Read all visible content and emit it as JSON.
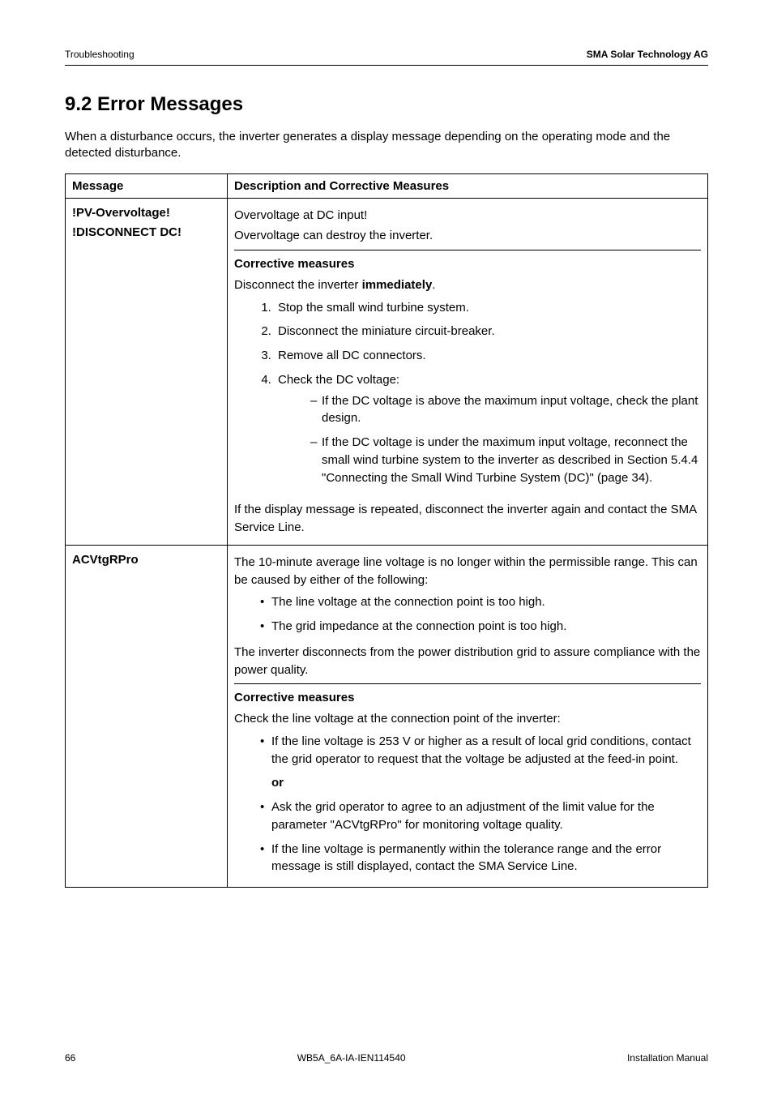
{
  "header": {
    "left": "Troubleshooting",
    "right": "SMA Solar Technology AG"
  },
  "section": {
    "title": "9.2 Error Messages",
    "intro": "When a disturbance occurs, the inverter generates a display message depending on the operating mode and the detected disturbance."
  },
  "table": {
    "col_message": "Message",
    "col_description": "Description and Corrective Measures",
    "row1": {
      "msg_line1": "!PV-Overvoltage!",
      "msg_line2": "!DISCONNECT DC!",
      "p1": "Overvoltage at DC input!",
      "p2": "Overvoltage can destroy the inverter.",
      "subhead": "Corrective measures",
      "p3_pre": "Disconnect the inverter ",
      "p3_bold": "immediately",
      "p3_post": ".",
      "step1": "Stop the small wind turbine system.",
      "step2": "Disconnect the miniature circuit-breaker.",
      "step3": "Remove all DC connectors.",
      "step4": "Check the DC voltage:",
      "dash1": "If the DC voltage is above the maximum input voltage, check the plant design.",
      "dash2": "If the DC voltage is under the maximum input voltage, reconnect the small wind turbine system to the inverter as described in Section 5.4.4 \"Connecting the Small Wind Turbine System (DC)\" (page 34).",
      "p4": "If the display message is repeated, disconnect the inverter again and contact the SMA Service Line."
    },
    "row2": {
      "msg": "ACVtgRPro",
      "p1": "The 10-minute average line voltage is no longer within the permissible range. This can be caused by either of the following:",
      "bul1": "The line voltage at the connection point is too high.",
      "bul2": "The grid impedance at the connection point is too high.",
      "p2": "The inverter disconnects from the power distribution grid to assure compliance with the power quality.",
      "subhead": "Corrective measures",
      "p3": "Check the line voltage at the connection point of the inverter:",
      "bul3": "If the line voltage is 253 V or higher as a result of local grid conditions, contact the grid operator to request that the voltage be adjusted at the feed-in point.",
      "or": "or",
      "bul4": "Ask the grid operator to agree to an adjustment of the limit value for the parameter \"ACVtgRPro\" for monitoring voltage quality.",
      "bul5": "If the line voltage is permanently within the tolerance range and the error message is still displayed, contact the SMA Service Line."
    }
  },
  "footer": {
    "page": "66",
    "doc": "WB5A_6A-IA-IEN114540",
    "type": "Installation Manual"
  }
}
